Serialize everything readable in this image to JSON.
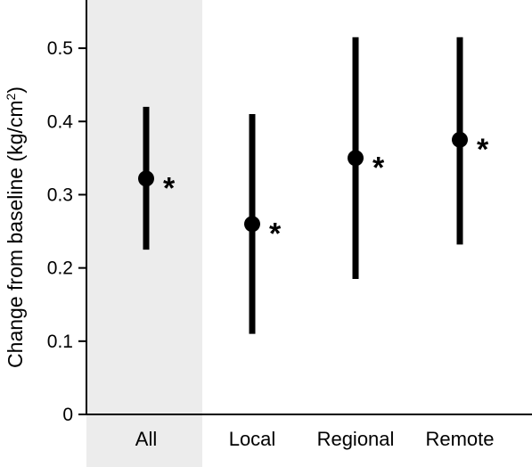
{
  "chart_data": {
    "type": "scatter",
    "style": "point-estimate with vertical error bars",
    "ylabel_main": "Change from baseline (kg/cm",
    "ylabel_sup": "2",
    "ylabel_end": ")",
    "ylim": [
      0,
      0.55
    ],
    "yticks": [
      0,
      0.1,
      0.2,
      0.3,
      0.4,
      0.5
    ],
    "ytick_labels": [
      "0",
      "0.1",
      "0.2",
      "0.3",
      "0.4",
      "0.5"
    ],
    "categories": [
      "All",
      "Local",
      "Regional",
      "Remote"
    ],
    "values": [
      0.322,
      0.26,
      0.35,
      0.375
    ],
    "lower": [
      0.225,
      0.11,
      0.185,
      0.232
    ],
    "upper": [
      0.42,
      0.41,
      0.515,
      0.515
    ],
    "significance_marker": "*",
    "significant": [
      true,
      true,
      true,
      true
    ],
    "highlighted_category": "All",
    "highlight_color": "#ececec",
    "point_color": "#000000",
    "grid": false,
    "legend": "none"
  }
}
